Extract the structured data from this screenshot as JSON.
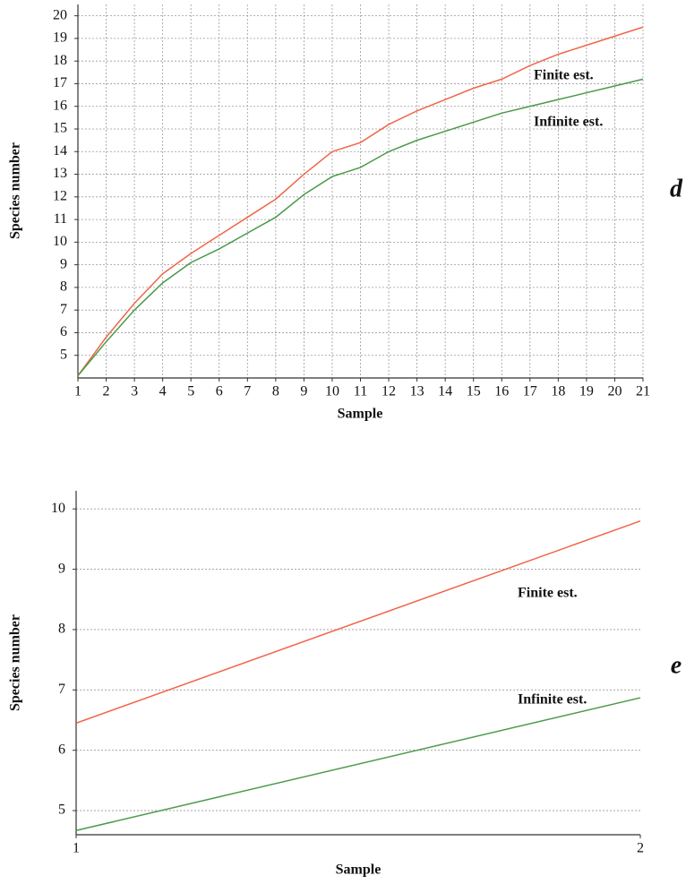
{
  "chart_data": [
    {
      "type": "line",
      "panel_label": "d",
      "x_label": "Sample",
      "y_label": "Species number",
      "x": [
        1,
        2,
        3,
        4,
        5,
        6,
        7,
        8,
        9,
        10,
        11,
        12,
        13,
        14,
        15,
        16,
        17,
        18,
        19,
        20,
        21
      ],
      "xlim": [
        1,
        21
      ],
      "xticks": [
        1,
        2,
        3,
        4,
        5,
        6,
        7,
        8,
        9,
        10,
        11,
        12,
        13,
        14,
        15,
        16,
        17,
        18,
        19,
        20,
        21
      ],
      "ylim": [
        4,
        20.5
      ],
      "yticks": [
        5,
        6,
        7,
        8,
        9,
        10,
        11,
        12,
        13,
        14,
        15,
        16,
        17,
        18,
        19,
        20
      ],
      "grid": "both",
      "series": [
        {
          "name": "Finite est.",
          "color": "#f0664a",
          "values": [
            4.1,
            5.8,
            7.3,
            8.6,
            9.5,
            10.3,
            11.1,
            11.9,
            13.0,
            14.0,
            14.4,
            15.2,
            15.8,
            16.3,
            16.8,
            17.2,
            17.8,
            18.3,
            18.7,
            19.1,
            19.5
          ]
        },
        {
          "name": "Infinite est.",
          "color": "#4a9a4a",
          "values": [
            4.1,
            5.6,
            7.0,
            8.2,
            9.1,
            9.7,
            10.4,
            11.1,
            12.1,
            12.9,
            13.3,
            14.0,
            14.5,
            14.9,
            15.3,
            15.7,
            16.0,
            16.3,
            16.6,
            16.9,
            17.2
          ]
        }
      ]
    },
    {
      "type": "line",
      "panel_label": "e",
      "x_label": "Sample",
      "y_label": "Species number",
      "x": [
        1,
        2
      ],
      "xlim": [
        1,
        2
      ],
      "xticks": [
        1,
        2
      ],
      "ylim": [
        4.6,
        10.3
      ],
      "yticks": [
        5,
        6,
        7,
        8,
        9,
        10
      ],
      "grid": "y",
      "series": [
        {
          "name": "Finite est.",
          "color": "#f0664a",
          "values": [
            6.45,
            9.8
          ]
        },
        {
          "name": "Infinite est.",
          "color": "#4a9a4a",
          "values": [
            4.67,
            6.87
          ]
        }
      ]
    }
  ]
}
